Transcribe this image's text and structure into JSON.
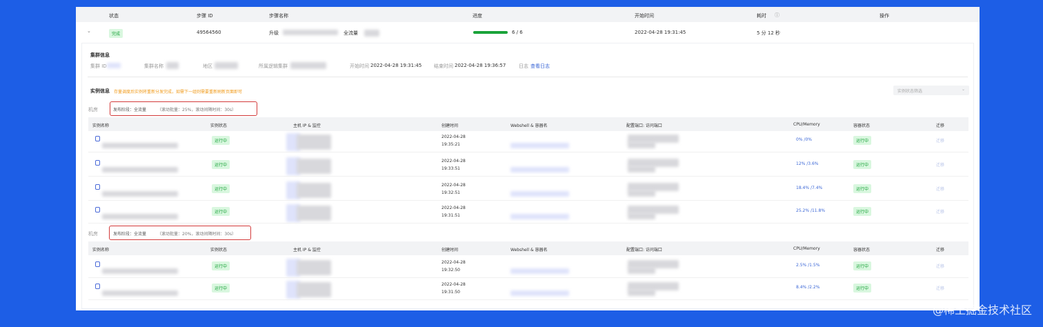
{
  "step_table": {
    "headers": [
      "状态",
      "步骤 ID",
      "步骤名称",
      "进度",
      "开始时间",
      "耗时",
      "操作"
    ],
    "row": {
      "status": "完成",
      "step_id": "49564560",
      "step_name_prefix": "升级",
      "step_name_suffix": "全流量",
      "progress": "6 / 6",
      "progress_value": 1.0,
      "start_time": "2022-04-28 19:31:45",
      "duration": "5 分 12 秒"
    }
  },
  "cluster_info": {
    "title": "集群信息",
    "cluster_id_label": "集群 ID",
    "cluster_name_label": "集群名称",
    "region_label": "地区",
    "logic_cluster_label": "所属逻辑集群",
    "start_label": "开始时间",
    "start_value": "2022-04-28 19:31:45",
    "end_label": "结束时间",
    "end_value": "2022-04-28 19:36:57",
    "log_label": "日志",
    "log_link": "查看日志"
  },
  "instance_info": {
    "title": "实例信息",
    "warning": "存量调度后实例将重新分发完成，如需下一组则需要重新刷新页面即可",
    "filter_placeholder": "实例状态筛选",
    "columns": [
      "实例名称",
      "实例状态",
      "主机 IP & 监控",
      "创建时间",
      "Webshell & 容器名",
      "配置端口: 访问端口",
      "CPU/Memory",
      "容器状态",
      "迁移"
    ],
    "groups": [
      {
        "room_label": "机房",
        "release": "发布阶段：全流量",
        "rolling": "（滚动批量：25%，滚动间隔时间：30s）",
        "rows": [
          {
            "status": "运行中",
            "date": "2022-04-28",
            "time": "19:35:21",
            "cpu_mem": "0% /0%",
            "container": "运行中",
            "migrate": "迁移"
          },
          {
            "status": "运行中",
            "date": "2022-04-28",
            "time": "19:33:51",
            "cpu_mem": "12% /3.6%",
            "container": "运行中",
            "migrate": "迁移"
          },
          {
            "status": "运行中",
            "date": "2022-04-28",
            "time": "19:32:51",
            "cpu_mem": "18.4% /7.4%",
            "container": "运行中",
            "migrate": "迁移"
          },
          {
            "status": "运行中",
            "date": "2022-04-28",
            "time": "19:31:51",
            "cpu_mem": "25.2% /11.8%",
            "container": "运行中",
            "migrate": "迁移"
          }
        ]
      },
      {
        "room_label": "机房",
        "release": "发布阶段：全流量",
        "rolling": "（滚动批量：20%，滚动间隔时间：30s）",
        "rows": [
          {
            "status": "运行中",
            "date": "2022-04-28",
            "time": "19:32:50",
            "cpu_mem": "2.5% /1.5%",
            "container": "运行中",
            "migrate": "迁移"
          },
          {
            "status": "运行中",
            "date": "2022-04-28",
            "time": "19:31:50",
            "cpu_mem": "8.4% /2.2%",
            "container": "运行中",
            "migrate": "迁移"
          }
        ]
      }
    ]
  },
  "watermark": "@稀土掘金技术社区",
  "colors": {
    "background": "#1d5ee6",
    "success": "#1aa33a",
    "highlight": "#d33a3a",
    "link": "#3a66d6"
  }
}
